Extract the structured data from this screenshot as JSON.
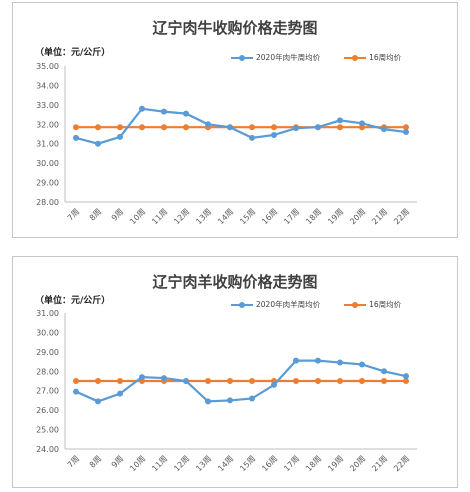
{
  "chart_data": [
    {
      "type": "line",
      "title": "辽宁肉牛收购价格走势图",
      "unit_label": "（单位：元/公斤）",
      "categories": [
        "7周",
        "8周",
        "9周",
        "10周",
        "11周",
        "12周",
        "13周",
        "14周",
        "15周",
        "16周",
        "17周",
        "18周",
        "19周",
        "20周",
        "21周",
        "22周"
      ],
      "ylim": [
        28.0,
        35.0
      ],
      "yticks": [
        "28.00",
        "29.00",
        "30.00",
        "31.00",
        "32.00",
        "33.00",
        "34.00",
        "35.00"
      ],
      "grid": false,
      "legend_position": "top-right",
      "series": [
        {
          "name": "2020年肉牛周均价",
          "color": "#5B9BD5",
          "values": [
            31.3,
            31.0,
            31.35,
            32.8,
            32.65,
            32.55,
            32.0,
            31.85,
            31.3,
            31.45,
            31.8,
            31.85,
            32.2,
            32.05,
            31.75,
            31.6
          ]
        },
        {
          "name": "16周均价",
          "color": "#ED7D31",
          "values": [
            31.85,
            31.85,
            31.85,
            31.85,
            31.85,
            31.85,
            31.85,
            31.85,
            31.85,
            31.85,
            31.85,
            31.85,
            31.85,
            31.85,
            31.85,
            31.85
          ]
        }
      ]
    },
    {
      "type": "line",
      "title": "辽宁肉羊收购价格走势图",
      "unit_label": "（单位：元/公斤）",
      "categories": [
        "7周",
        "8周",
        "9周",
        "10周",
        "11周",
        "12周",
        "13周",
        "14周",
        "15周",
        "16周",
        "17周",
        "18周",
        "19周",
        "20周",
        "21周",
        "22周"
      ],
      "ylim": [
        24.0,
        31.0
      ],
      "yticks": [
        "24.00",
        "25.00",
        "26.00",
        "27.00",
        "28.00",
        "29.00",
        "30.00",
        "31.00"
      ],
      "grid": false,
      "legend_position": "top-right",
      "series": [
        {
          "name": "2020年肉羊周均价",
          "color": "#5B9BD5",
          "values": [
            26.95,
            26.45,
            26.85,
            27.7,
            27.65,
            27.5,
            26.45,
            26.5,
            26.6,
            27.3,
            28.55,
            28.55,
            28.45,
            28.35,
            28.0,
            27.75
          ]
        },
        {
          "name": "16周均价",
          "color": "#ED7D31",
          "values": [
            27.5,
            27.5,
            27.5,
            27.5,
            27.5,
            27.5,
            27.5,
            27.5,
            27.5,
            27.5,
            27.5,
            27.5,
            27.5,
            27.5,
            27.5,
            27.5
          ]
        }
      ]
    }
  ]
}
